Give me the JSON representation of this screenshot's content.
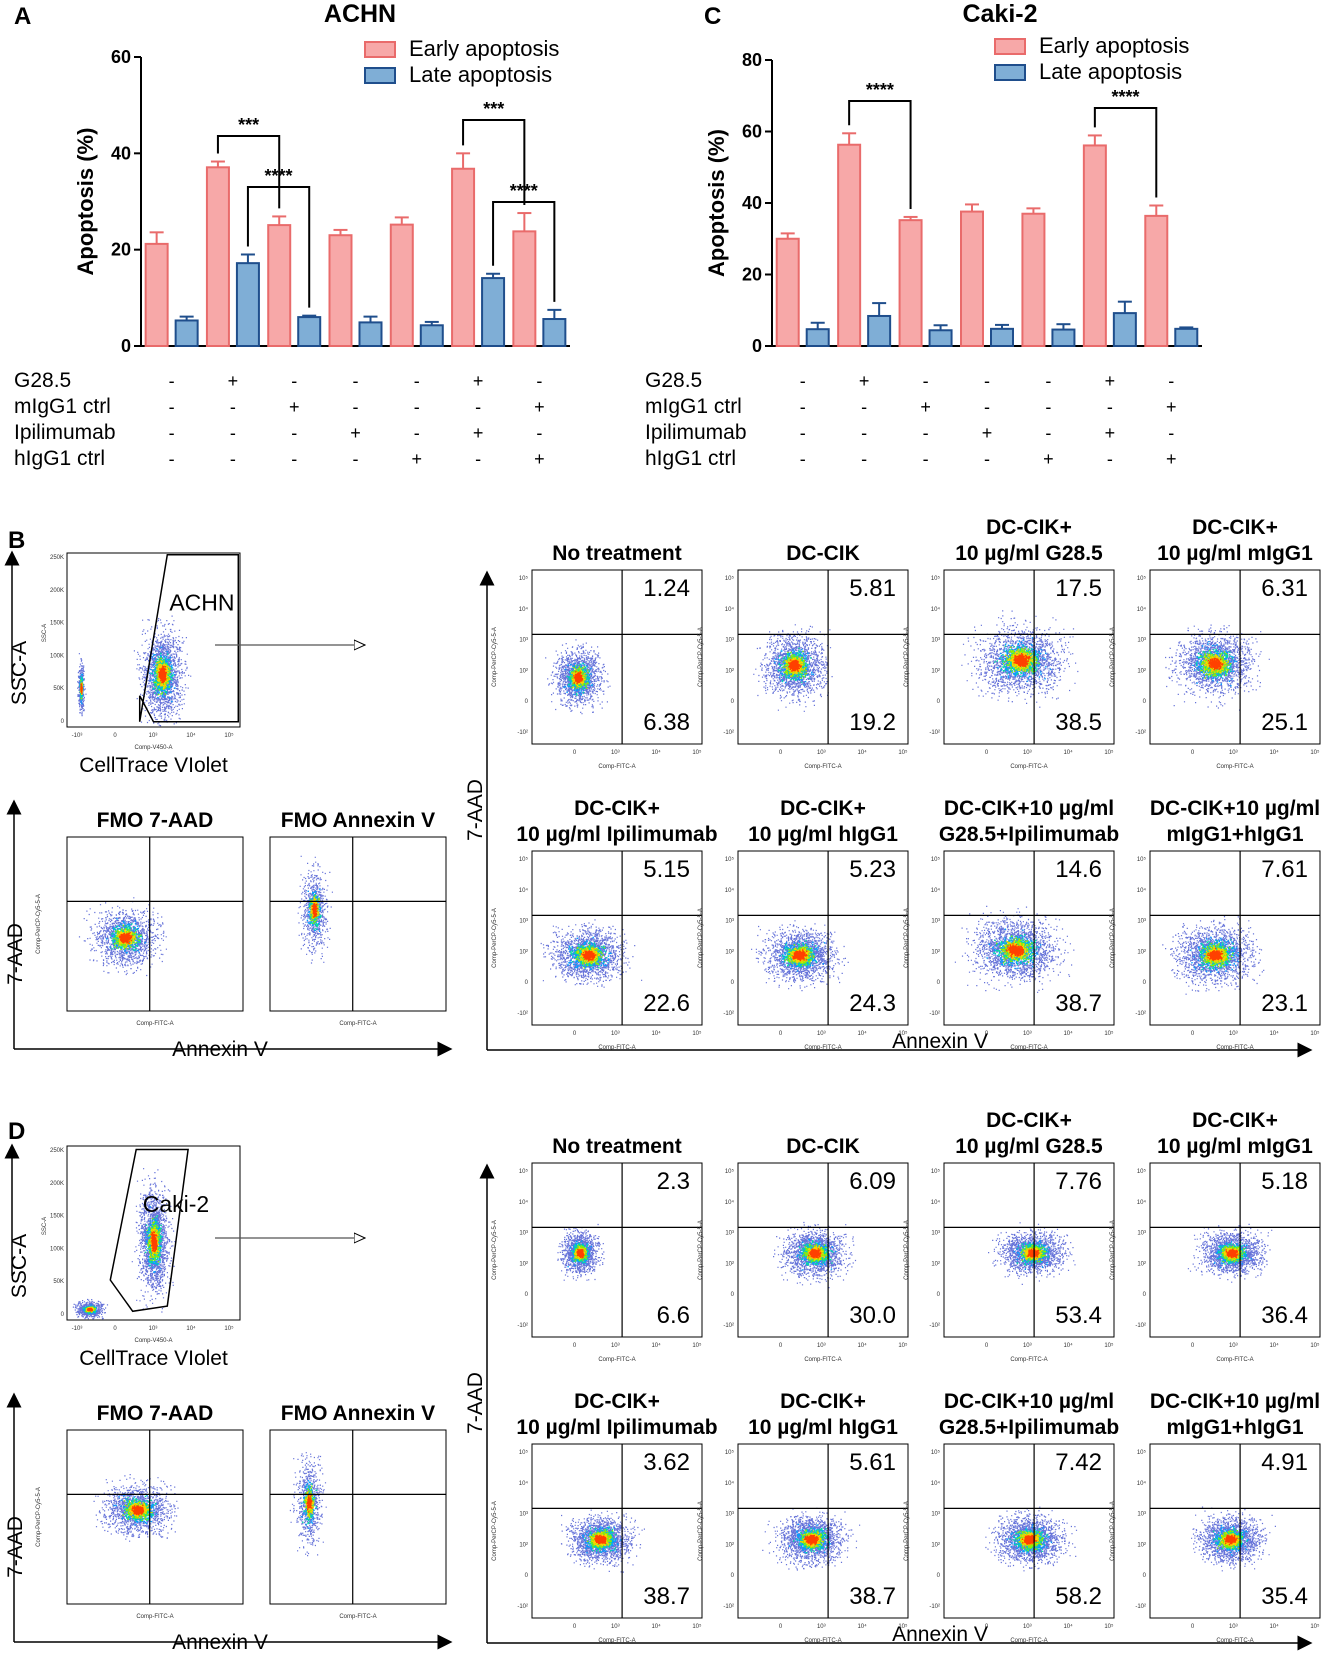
{
  "panels": {
    "A": {
      "letter": "A"
    },
    "B": {
      "letter": "B"
    },
    "C": {
      "letter": "C"
    },
    "D": {
      "letter": "D"
    }
  },
  "chart_data": [
    {
      "id": "A",
      "type": "bar",
      "title": "ACHN",
      "ylabel": "Apoptosis (%)",
      "xlabel": "",
      "ylim": [
        0,
        60
      ],
      "yticks": [
        0,
        20,
        40,
        60
      ],
      "legend": "top-right",
      "series": [
        {
          "name": "Early apoptosis",
          "color": "#f7a8a8",
          "edge": "#e96b6b",
          "values": [
            21.2,
            37.1,
            25.1,
            23.0,
            25.2,
            36.8,
            23.8
          ],
          "errors": [
            2.4,
            1.2,
            1.8,
            1.1,
            1.5,
            3.2,
            3.8
          ]
        },
        {
          "name": "Late apoptosis",
          "color": "#7faed6",
          "edge": "#1f4e8c",
          "values": [
            5.3,
            17.2,
            6.0,
            4.9,
            4.3,
            14.1,
            5.6
          ],
          "errors": [
            0.8,
            1.8,
            0.3,
            1.2,
            0.7,
            0.9,
            1.9
          ]
        }
      ],
      "significance": [
        {
          "label": "***",
          "from": [
            1,
            0
          ],
          "to": [
            2,
            0
          ]
        },
        {
          "label": "****",
          "from": [
            1,
            1
          ],
          "to": [
            2,
            1
          ]
        },
        {
          "label": "***",
          "from": [
            5,
            0
          ],
          "to": [
            6,
            0
          ]
        },
        {
          "label": "****",
          "from": [
            5,
            1
          ],
          "to": [
            6,
            1
          ]
        }
      ],
      "conditions": [
        {
          "name": "G28.5",
          "signs": [
            "-",
            "+",
            "-",
            "-",
            "-",
            "+",
            "-"
          ]
        },
        {
          "name": "mIgG1 ctrl",
          "signs": [
            "-",
            "-",
            "+",
            "-",
            "-",
            "-",
            "+"
          ]
        },
        {
          "name": "Ipilimumab",
          "signs": [
            "-",
            "-",
            "-",
            "+",
            "-",
            "+",
            "-"
          ]
        },
        {
          "name": "hIgG1 ctrl",
          "signs": [
            "-",
            "-",
            "-",
            "-",
            "+",
            "-",
            "+"
          ]
        }
      ]
    },
    {
      "id": "C",
      "type": "bar",
      "title": "Caki-2",
      "ylabel": "Apoptosis (%)",
      "xlabel": "",
      "ylim": [
        0,
        80
      ],
      "yticks": [
        0,
        20,
        40,
        60,
        80
      ],
      "legend": "top-right",
      "series": [
        {
          "name": "Early apoptosis",
          "color": "#f7a8a8",
          "edge": "#e96b6b",
          "values": [
            30.0,
            56.3,
            35.2,
            37.6,
            37.0,
            56.1,
            36.4
          ],
          "errors": [
            1.5,
            3.2,
            0.9,
            2.0,
            1.5,
            2.8,
            2.9
          ]
        },
        {
          "name": "Late apoptosis",
          "color": "#7faed6",
          "edge": "#1f4e8c",
          "values": [
            4.7,
            8.4,
            4.4,
            4.8,
            4.6,
            9.2,
            4.8
          ],
          "errors": [
            1.8,
            3.6,
            1.4,
            1.1,
            1.5,
            3.2,
            0.4
          ]
        }
      ],
      "significance": [
        {
          "label": "****",
          "from": [
            1,
            0
          ],
          "to": [
            2,
            0
          ]
        },
        {
          "label": "****",
          "from": [
            5,
            0
          ],
          "to": [
            6,
            0
          ]
        }
      ],
      "conditions": [
        {
          "name": "G28.5",
          "signs": [
            "-",
            "+",
            "-",
            "-",
            "-",
            "+",
            "-"
          ]
        },
        {
          "name": "mIgG1 ctrl",
          "signs": [
            "-",
            "-",
            "+",
            "-",
            "-",
            "-",
            "+"
          ]
        },
        {
          "name": "Ipilimumab",
          "signs": [
            "-",
            "-",
            "-",
            "+",
            "-",
            "+",
            "-"
          ]
        },
        {
          "name": "hIgG1 ctrl",
          "signs": [
            "-",
            "-",
            "-",
            "-",
            "+",
            "-",
            "+"
          ]
        }
      ]
    }
  ],
  "flow_B": {
    "gate": {
      "label": "ACHN",
      "yaxis": "SSC-A",
      "ysmall": "SSC-A",
      "xaxis": "CellTrace VIolet",
      "xsmall": "Comp-V450-A",
      "yticks": [
        "250K",
        "200K",
        "150K",
        "100K",
        "50K",
        "0"
      ],
      "xticks": [
        "-10³",
        "0",
        "10³",
        "10⁴",
        "10⁵"
      ]
    },
    "fmo": [
      {
        "title": "FMO 7-AAD"
      },
      {
        "title": "FMO Annexin V"
      }
    ],
    "fmo_axes": {
      "y": "7-AAD",
      "ysmall": "Comp-PerCP-Cy5-5-A",
      "x": "Annexin V",
      "xsmall": "Comp-FITC-A"
    },
    "plots": [
      {
        "title1": "No treatment",
        "title2": "",
        "ur": "1.24",
        "lr": "6.38"
      },
      {
        "title1": "DC-CIK",
        "title2": "",
        "ur": "5.81",
        "lr": "19.2"
      },
      {
        "title1": "DC-CIK+",
        "title2": "10 µg/ml G28.5",
        "ur": "17.5",
        "lr": "38.5"
      },
      {
        "title1": "DC-CIK+",
        "title2": "10 µg/ml mIgG1",
        "ur": "6.31",
        "lr": "25.1"
      },
      {
        "title1": "DC-CIK+",
        "title2": "10 µg/ml Ipilimumab",
        "ur": "5.15",
        "lr": "22.6"
      },
      {
        "title1": "DC-CIK+",
        "title2": "10 µg/ml hIgG1",
        "ur": "5.23",
        "lr": "24.3"
      },
      {
        "title1": "DC-CIK+10 µg/ml",
        "title2": "G28.5+Ipilimumab",
        "ur": "14.6",
        "lr": "38.7"
      },
      {
        "title1": "DC-CIK+10 µg/ml",
        "title2": "mIgG1+hIgG1",
        "ur": "7.61",
        "lr": "23.1"
      }
    ],
    "axes": {
      "y": "7-AAD",
      "ysmall": "Comp-PerCP-Cy5-5-A",
      "x": "Annexin V",
      "xsmall": "Comp-FITC-A",
      "ticks": [
        "10⁵",
        "10⁴",
        "10³",
        "10²",
        "0",
        "-10²"
      ],
      "xticks": [
        "0",
        "10³",
        "10⁴",
        "10⁵"
      ]
    }
  },
  "flow_D": {
    "gate": {
      "label": "Caki-2",
      "yaxis": "SSC-A",
      "ysmall": "SSC-A",
      "xaxis": "CellTrace VIolet",
      "xsmall": "Comp-V450-A",
      "yticks": [
        "250K",
        "200K",
        "150K",
        "100K",
        "50K",
        "0"
      ],
      "xticks": [
        "-10³",
        "0",
        "10³",
        "10⁴",
        "10⁵"
      ]
    },
    "fmo": [
      {
        "title": "FMO 7-AAD"
      },
      {
        "title": "FMO Annexin V"
      }
    ],
    "fmo_axes": {
      "y": "7-AAD",
      "ysmall": "Comp-PerCP-Cy5-5-A",
      "x": "Annexin V",
      "xsmall": "Comp-FITC-A"
    },
    "plots": [
      {
        "title1": "No treatment",
        "title2": "",
        "ur": "2.3",
        "lr": "6.6"
      },
      {
        "title1": "DC-CIK",
        "title2": "",
        "ur": "6.09",
        "lr": "30.0"
      },
      {
        "title1": "DC-CIK+",
        "title2": "10 µg/ml G28.5",
        "ur": "7.76",
        "lr": "53.4"
      },
      {
        "title1": "DC-CIK+",
        "title2": "10 µg/ml mIgG1",
        "ur": "5.18",
        "lr": "36.4"
      },
      {
        "title1": "DC-CIK+",
        "title2": "10 µg/ml Ipilimumab",
        "ur": "3.62",
        "lr": "38.7"
      },
      {
        "title1": "DC-CIK+",
        "title2": "10 µg/ml hIgG1",
        "ur": "5.61",
        "lr": "38.7"
      },
      {
        "title1": "DC-CIK+10 µg/ml",
        "title2": "G28.5+Ipilimumab",
        "ur": "7.42",
        "lr": "58.2"
      },
      {
        "title1": "DC-CIK+10 µg/ml",
        "title2": "mIgG1+hIgG1",
        "ur": "4.91",
        "lr": "35.4"
      }
    ],
    "axes": {
      "y": "7-AAD",
      "ysmall": "Comp-PerCP-Cy5-5-A",
      "x": "Annexin V",
      "xsmall": "Comp-FITC-A",
      "ticks": [
        "10⁵",
        "10⁴",
        "10³",
        "10²",
        "0",
        "-10²"
      ],
      "xticks": [
        "0",
        "10³",
        "10⁴",
        "10⁵"
      ]
    }
  }
}
